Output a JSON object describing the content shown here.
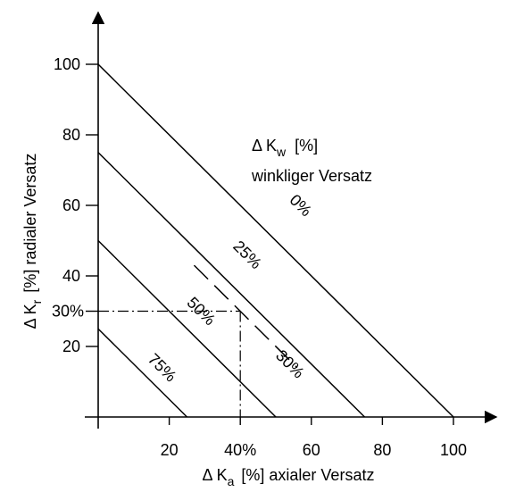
{
  "chart_data": {
    "type": "line",
    "xlim": [
      0,
      100
    ],
    "ylim": [
      0,
      100
    ],
    "x_ticks": [
      20,
      40,
      60,
      80,
      100
    ],
    "x_tick_labels": [
      "20",
      "40%",
      "60",
      "80",
      "100"
    ],
    "y_ticks": [
      20,
      40,
      60,
      80,
      100
    ],
    "y_tick_labels": [
      "20",
      "40",
      "60",
      "80",
      "100"
    ],
    "y_marker": {
      "value": 30,
      "label": "30%"
    },
    "xlabel": {
      "prefix": "Δ K",
      "sub": "a",
      "suffix": "[%]  axialer Versatz"
    },
    "ylabel": {
      "prefix": "Δ K",
      "sub": "r",
      "suffix": "[%]  radialer Versatz"
    },
    "legend": {
      "title_prefix": "Δ K",
      "title_sub": "w",
      "title_suffix": "[%]",
      "subtitle": "winkliger Versatz"
    },
    "series": [
      {
        "name": "0%",
        "x": [
          0,
          100
        ],
        "y": [
          100,
          0
        ],
        "style": "solid",
        "label_at": [
          57,
          60
        ]
      },
      {
        "name": "25%",
        "x": [
          0,
          75
        ],
        "y": [
          75,
          0
        ],
        "style": "solid",
        "label_at": [
          42,
          46
        ]
      },
      {
        "name": "50%",
        "x": [
          0,
          50
        ],
        "y": [
          50,
          0
        ],
        "style": "solid",
        "label_at": [
          29,
          30
        ]
      },
      {
        "name": "75%",
        "x": [
          0,
          25
        ],
        "y": [
          25,
          0
        ],
        "style": "solid",
        "label_at": [
          18,
          14
        ]
      },
      {
        "name": "30%",
        "x": [
          27,
          56
        ],
        "y": [
          43,
          14
        ],
        "style": "dashed",
        "label_at": [
          54,
          15
        ]
      }
    ],
    "guide_lines": [
      {
        "x": [
          0,
          40
        ],
        "y": [
          30,
          30
        ],
        "style": "dashdot"
      },
      {
        "x": [
          40,
          40
        ],
        "y": [
          30,
          0
        ],
        "style": "dashdot"
      }
    ],
    "grid": false
  }
}
